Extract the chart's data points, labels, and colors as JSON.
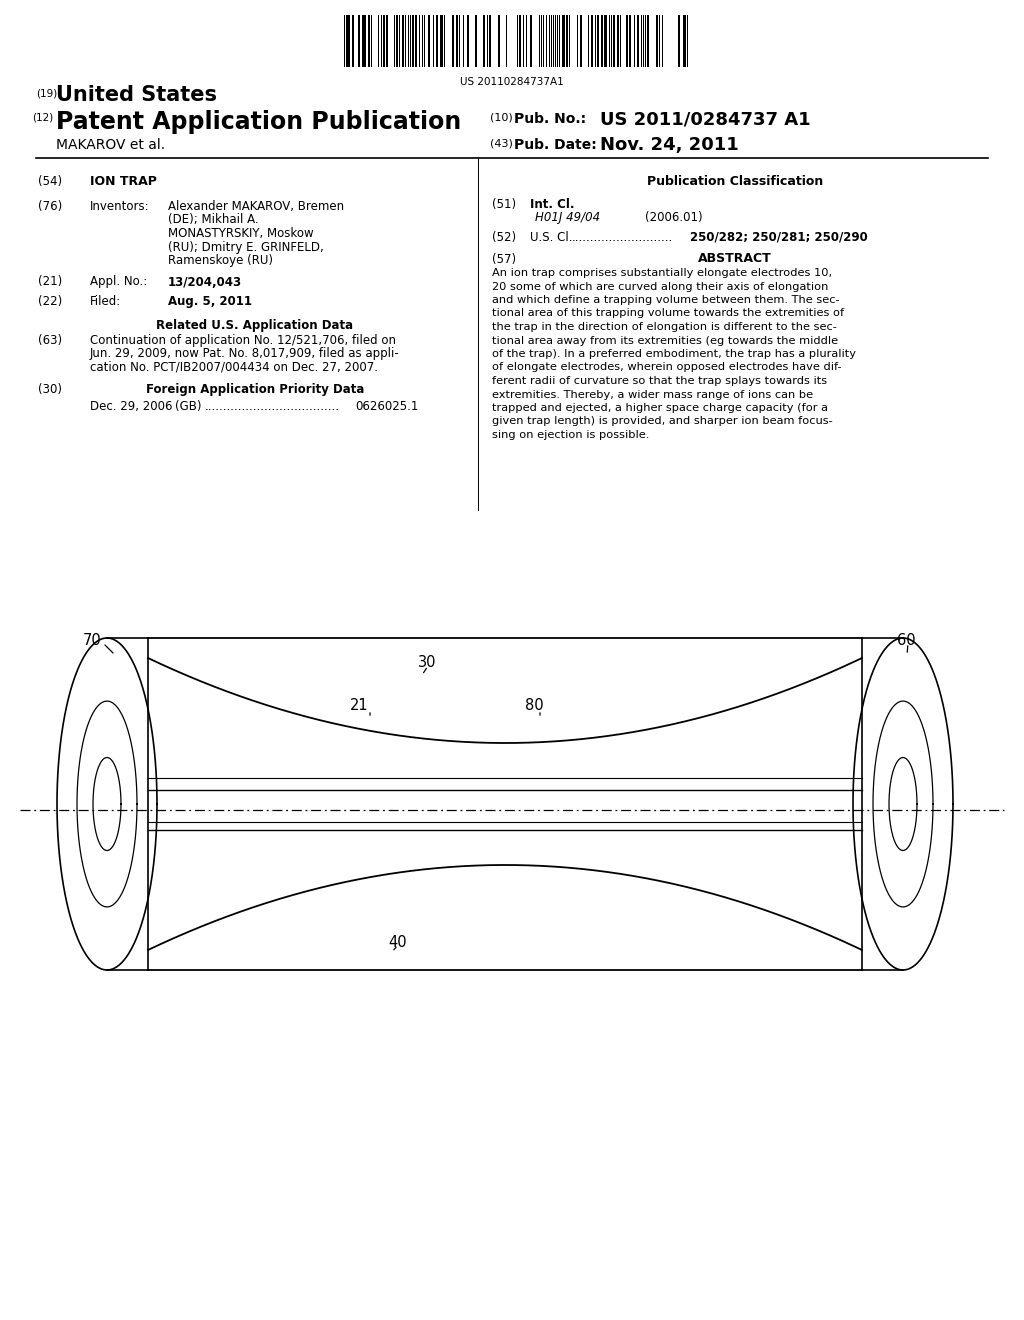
{
  "background_color": "#ffffff",
  "barcode_text": "US 20110284737A1",
  "title_19_num": "(19)",
  "title_19_text": "United States",
  "title_12_num": "(12)",
  "title_12_text": "Patent Application Publication",
  "pub_no_num": "(10)",
  "pub_no_label": "Pub. No.:",
  "pub_no_value": "US 2011/0284737 A1",
  "pub_date_num": "(43)",
  "pub_date_label": "Pub. Date:",
  "pub_date_value": "Nov. 24, 2011",
  "inventor_name": "MAKAROV et al.",
  "section54_label": "(54)",
  "section54_title": "ION TRAP",
  "section76_label": "(76)",
  "section76_heading": "Inventors:",
  "inv_line1": "Alexander MAKAROV, Bremen",
  "inv_line2": "(DE); Mikhail A.",
  "inv_line3": "MONASTYRSKIY, Moskow",
  "inv_line4": "(RU); Dmitry E. GRINFELD,",
  "inv_line5": "Ramenskoye (RU)",
  "section21_label": "(21)",
  "section21_heading": "Appl. No.:",
  "section21_value": "13/204,043",
  "section22_label": "(22)",
  "section22_heading": "Filed:",
  "section22_value": "Aug. 5, 2011",
  "related_heading": "Related U.S. Application Data",
  "section63_label": "(63)",
  "section63_line1": "Continuation of application No. 12/521,706, filed on",
  "section63_line2": "Jun. 29, 2009, now Pat. No. 8,017,909, filed as appli-",
  "section63_line3": "cation No. PCT/IB2007/004434 on Dec. 27, 2007.",
  "section30_label": "(30)",
  "section30_heading": "Foreign Application Priority Data",
  "section30_date": "Dec. 29, 2006",
  "section30_country": "(GB)",
  "section30_dots": "....................................",
  "section30_number": "0626025.1",
  "pub_class_heading": "Publication Classification",
  "section51_label": "(51)",
  "section51_heading": "Int. Cl.",
  "section51_class": "H01J 49/04",
  "section51_year": "(2006.01)",
  "section52_label": "(52)",
  "section52_heading": "U.S. Cl.",
  "section52_dots": "...........................",
  "section52_value": "250/282; 250/281; 250/290",
  "section57_label": "(57)",
  "section57_heading": "ABSTRACT",
  "abstract_line1": "An ion trap comprises substantially elongate electrodes 10,",
  "abstract_line2": "20 some of which are curved along their axis of elongation",
  "abstract_line3": "and which define a trapping volume between them. The sec-",
  "abstract_line4": "tional area of this trapping volume towards the extremities of",
  "abstract_line5": "the trap in the direction of elongation is different to the sec-",
  "abstract_line6": "tional area away from its extremities (eg towards the middle",
  "abstract_line7": "of the trap). In a preferred embodiment, the trap has a plurality",
  "abstract_line8": "of elongate electrodes, wherein opposed electrodes have dif-",
  "abstract_line9": "ferent radii of curvature so that the trap splays towards its",
  "abstract_line10": "extremities. Thereby, a wider mass range of ions can be",
  "abstract_line11": "trapped and ejected, a higher space charge capacity (for a",
  "abstract_line12": "given trap length) is provided, and sharper ion beam focus-",
  "abstract_line13": "sing on ejection is possible.",
  "diagram_label_70": "70",
  "diagram_label_60": "60",
  "diagram_label_30": "30",
  "diagram_label_21": "21",
  "diagram_label_80": "80",
  "diagram_label_40": "40"
}
